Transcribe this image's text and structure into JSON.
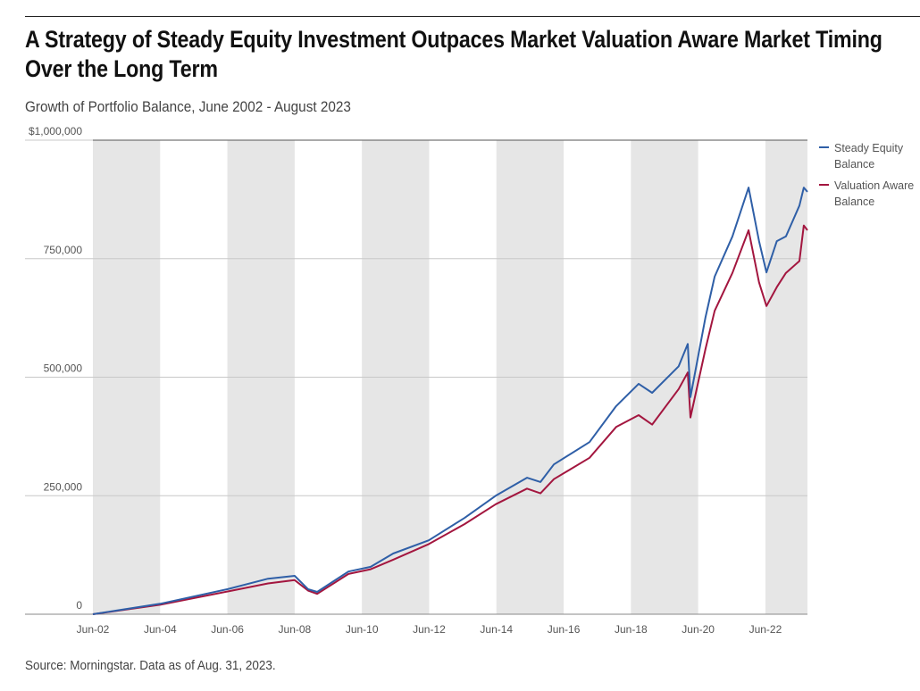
{
  "title": "A Strategy of Steady Equity Investment Outpaces Market Valuation Aware Market Timing Over the Long Term",
  "subtitle": "Growth of Portfolio Balance, June 2002 - August 2023",
  "source": "Source: Morningstar. Data as of Aug. 31, 2023.",
  "chart_data": {
    "type": "line",
    "title": "Growth of Portfolio Balance, June 2002 - August 2023",
    "xlabel": "",
    "ylabel": "",
    "xlim": [
      2002.42,
      2023.67
    ],
    "ylim": [
      0,
      1000000
    ],
    "y_ticks": [
      0,
      250000,
      500000,
      750000,
      1000000
    ],
    "y_tick_labels": [
      "0",
      "250,000",
      "500,000",
      "750,000",
      "$1,000,000"
    ],
    "x_ticks": [
      2002.42,
      2004.42,
      2006.42,
      2008.42,
      2010.42,
      2012.42,
      2014.42,
      2016.42,
      2018.42,
      2020.42,
      2022.42
    ],
    "x_tick_labels": [
      "Jun-02",
      "Jun-04",
      "Jun-06",
      "Jun-08",
      "Jun-10",
      "Jun-12",
      "Jun-14",
      "Jun-16",
      "Jun-18",
      "Jun-20",
      "Jun-22"
    ],
    "shaded_bands": [
      [
        2002.42,
        2004.42
      ],
      [
        2006.42,
        2008.42
      ],
      [
        2010.42,
        2012.42
      ],
      [
        2014.42,
        2016.42
      ],
      [
        2018.42,
        2020.42
      ],
      [
        2022.42,
        2023.67
      ]
    ],
    "grid": true,
    "legend_position": "right",
    "x": [
      2002.42,
      2004.42,
      2006.43,
      2007.63,
      2008.42,
      2008.82,
      2009.09,
      2010.02,
      2010.68,
      2011.35,
      2012.41,
      2013.47,
      2014.4,
      2015.33,
      2015.73,
      2016.13,
      2017.19,
      2017.98,
      2018.65,
      2019.05,
      2019.84,
      2020.11,
      2020.19,
      2020.64,
      2020.91,
      2021.44,
      2021.92,
      2022.23,
      2022.45,
      2022.76,
      2023.03,
      2023.43,
      2023.56,
      2023.67
    ],
    "series": [
      {
        "name": "Steady Equity Balance",
        "color": "#2f5fa7",
        "values": [
          0,
          22000,
          53000,
          75000,
          81000,
          53000,
          47000,
          90000,
          100000,
          128000,
          156000,
          203000,
          250000,
          288000,
          279000,
          316000,
          363000,
          439000,
          486000,
          467000,
          523000,
          570000,
          458000,
          627000,
          712000,
          797000,
          900000,
          787000,
          721000,
          787000,
          797000,
          862000,
          900000,
          891000
        ]
      },
      {
        "name": "Valuation Aware Balance",
        "color": "#a3163f",
        "values": [
          0,
          20000,
          48000,
          65000,
          72000,
          50000,
          43000,
          85000,
          95000,
          115000,
          148000,
          190000,
          232000,
          265000,
          255000,
          285000,
          330000,
          395000,
          420000,
          400000,
          475000,
          510000,
          415000,
          560000,
          640000,
          720000,
          810000,
          700000,
          650000,
          690000,
          720000,
          745000,
          820000,
          810000
        ]
      }
    ]
  }
}
